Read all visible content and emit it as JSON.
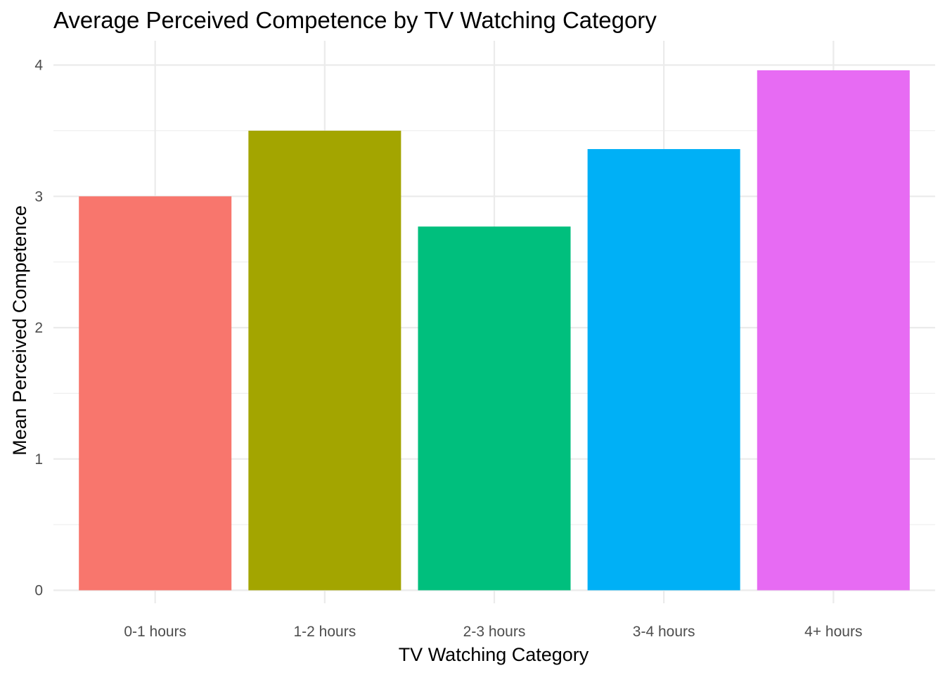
{
  "chart_data": {
    "type": "bar",
    "title": "Average Perceived Competence by TV Watching Category",
    "xlabel": "TV Watching Category",
    "ylabel": "Mean Perceived Competence",
    "categories": [
      "0-1 hours",
      "1-2 hours",
      "2-3 hours",
      "3-4 hours",
      "4+ hours"
    ],
    "values": [
      3.0,
      3.5,
      2.77,
      3.36,
      3.96
    ],
    "colors": [
      "#F8766D",
      "#A3A500",
      "#00BF7D",
      "#00B0F6",
      "#E76BF3"
    ],
    "ylim": [
      0,
      4.2
    ],
    "yticks": [
      0,
      1,
      2,
      3,
      4
    ],
    "ytick_labels": [
      "0",
      "1",
      "2",
      "3",
      "4"
    ],
    "grid": true,
    "legend": "none"
  }
}
